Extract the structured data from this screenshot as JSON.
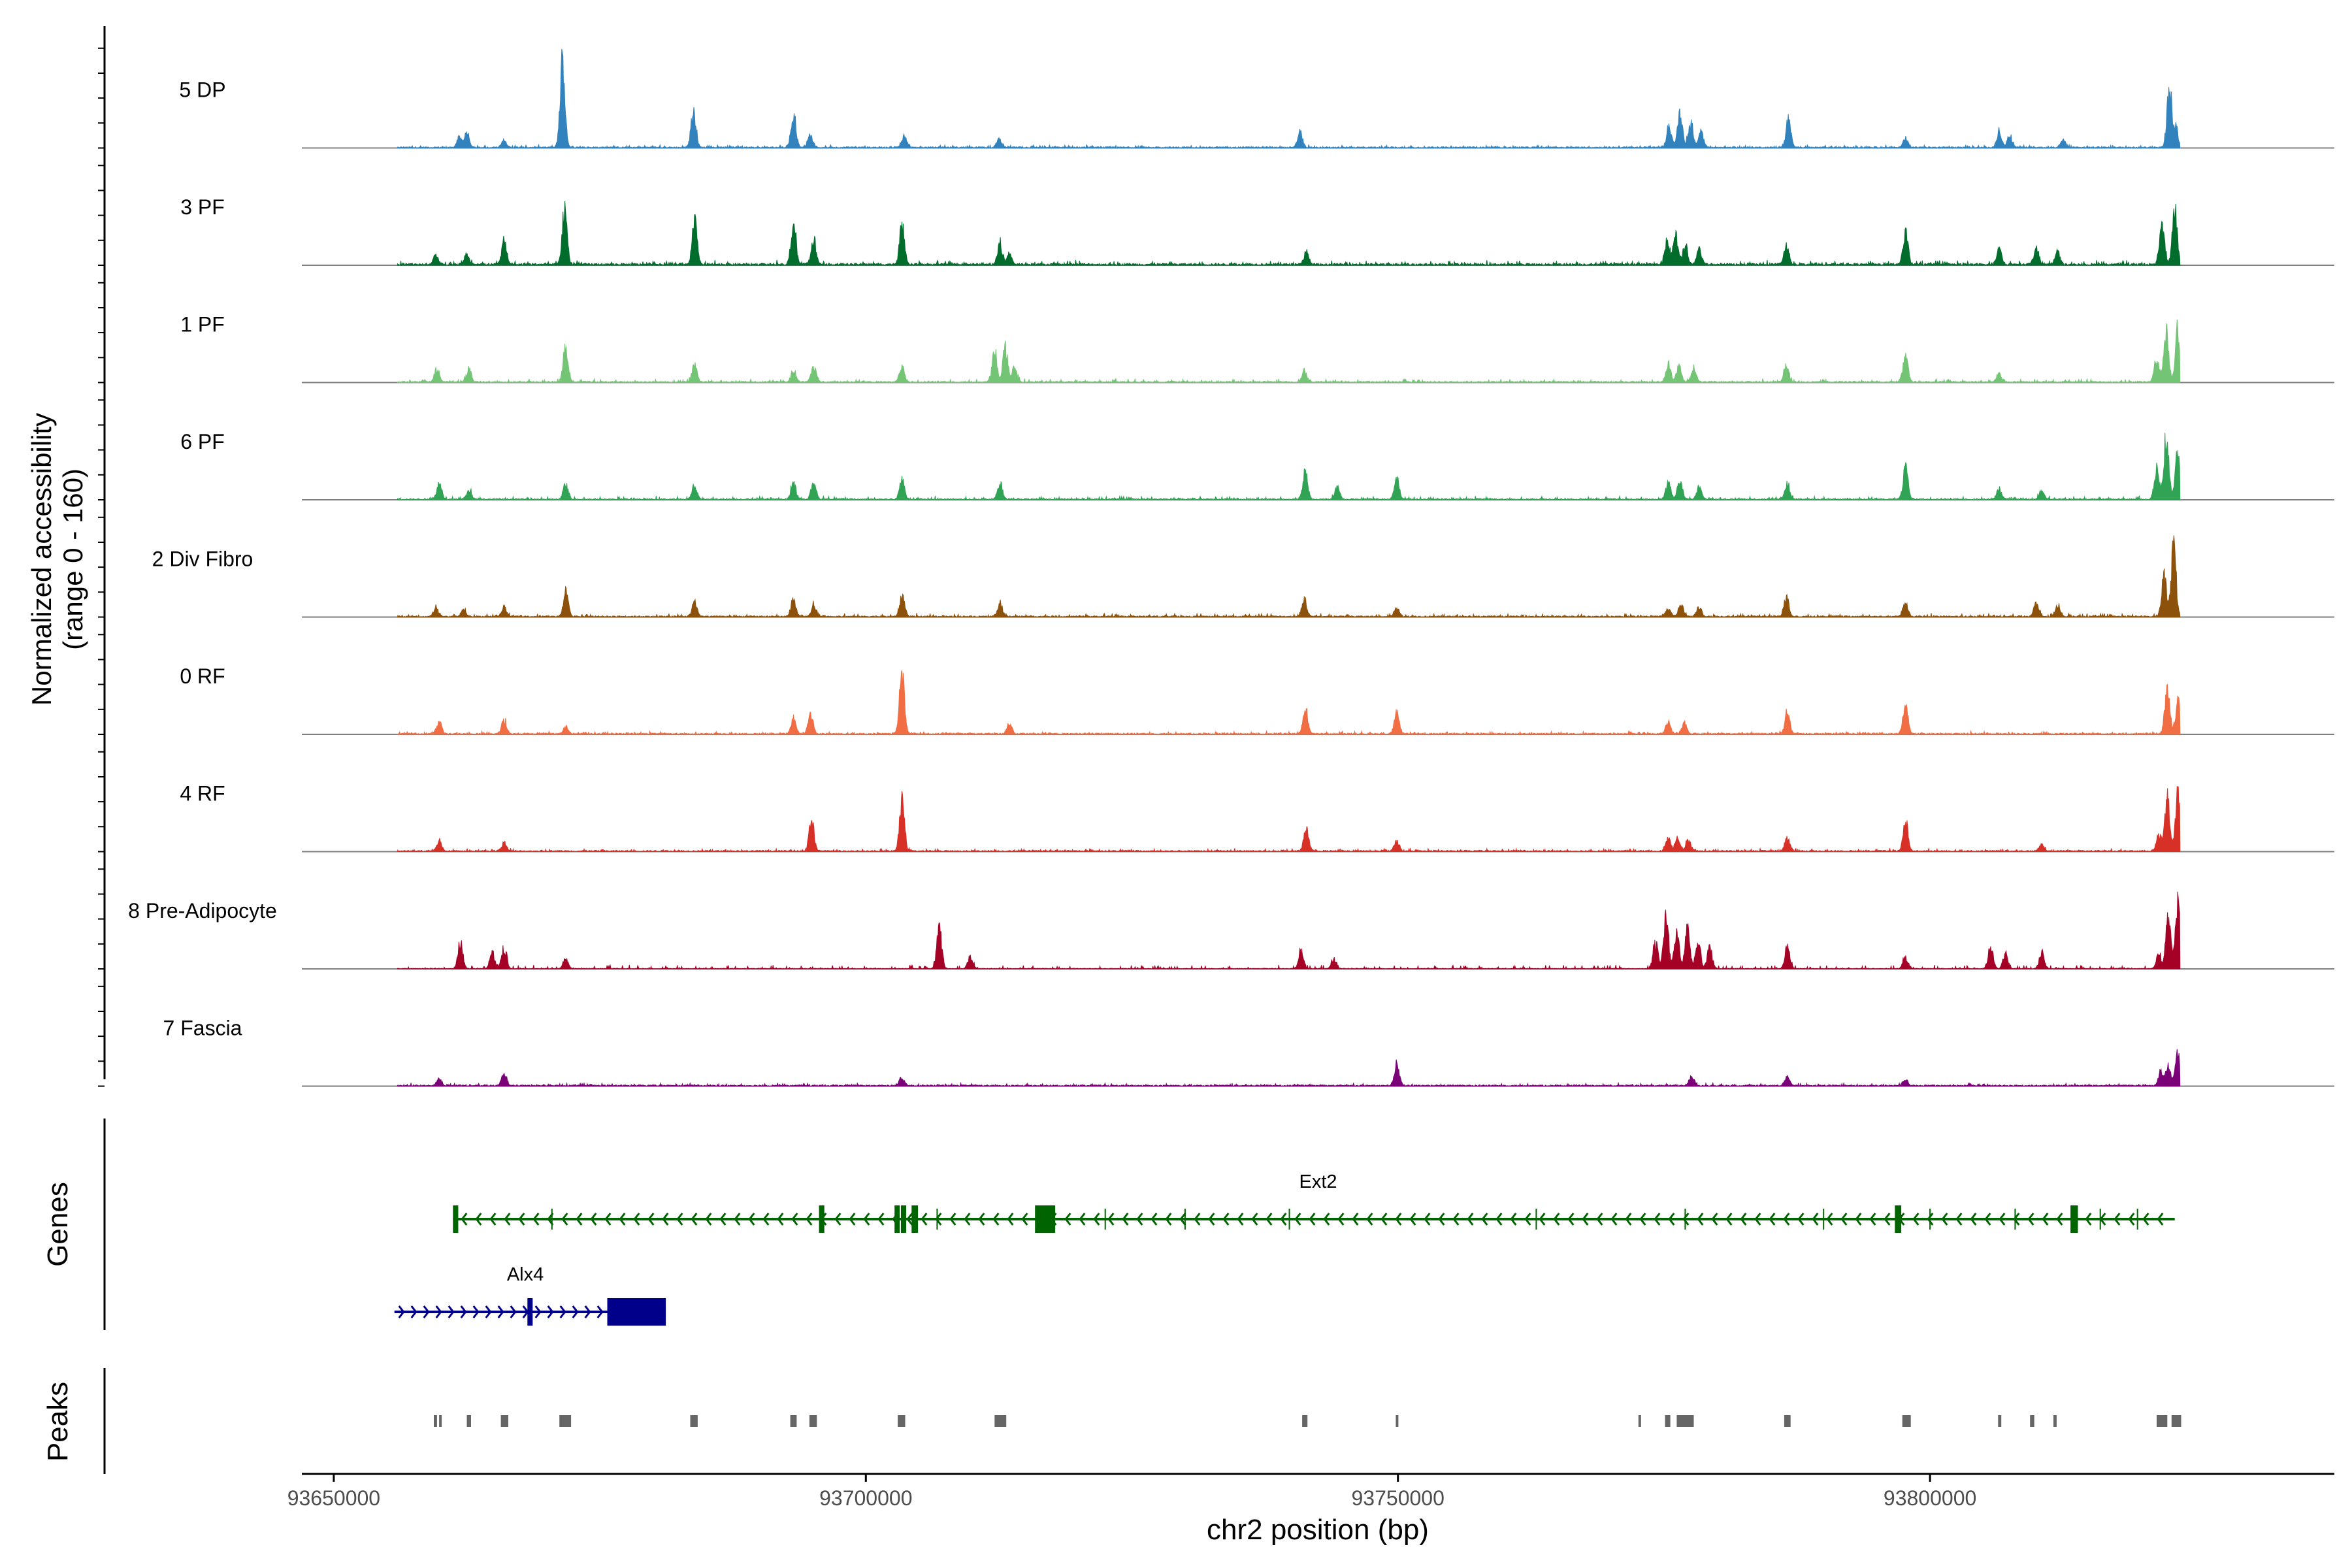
{
  "chart_data": {
    "type": "genome-coverage",
    "title": "",
    "ylabel": "Normalized accessibility (range 0 - 160)",
    "ylabel_lines": [
      "Normalized accessibility",
      "(range 0 - 160)"
    ],
    "ylim": [
      0,
      160
    ],
    "xlabel": "chr2 position (bp)",
    "xlim": [
      93647000,
      93838000
    ],
    "xticks": [
      93650000,
      93700000,
      93750000,
      93800000
    ],
    "xtick_labels": [
      "93650000",
      "93700000",
      "93750000",
      "93800000"
    ],
    "data_start": 93656000,
    "data_end": 93823500,
    "tracks": [
      {
        "name": "5 DP",
        "color": "#3182bd",
        "baseline": 2,
        "noise": 3,
        "peaks": [
          [
            93671500,
            160
          ],
          [
            93683800,
            70
          ],
          [
            93693200,
            65
          ],
          [
            93661800,
            18
          ],
          [
            93662500,
            25
          ],
          [
            93666000,
            12
          ],
          [
            93694800,
            22
          ],
          [
            93703600,
            22
          ],
          [
            93712500,
            15
          ],
          [
            93740800,
            28
          ],
          [
            93775500,
            40
          ],
          [
            93776500,
            60
          ],
          [
            93777500,
            50
          ],
          [
            93778500,
            28
          ],
          [
            93786700,
            50
          ],
          [
            93797700,
            18
          ],
          [
            93806500,
            30
          ],
          [
            93807500,
            22
          ],
          [
            93812500,
            15
          ],
          [
            93822500,
            105
          ],
          [
            93823100,
            35
          ]
        ]
      },
      {
        "name": "3 PF",
        "color": "#006d2c",
        "baseline": 3,
        "noise": 5,
        "peaks": [
          [
            93671700,
            105
          ],
          [
            93683900,
            82
          ],
          [
            93693200,
            80
          ],
          [
            93695100,
            48
          ],
          [
            93703400,
            72
          ],
          [
            93666000,
            42
          ],
          [
            93662500,
            18
          ],
          [
            93659600,
            16
          ],
          [
            93712600,
            38
          ],
          [
            93713500,
            22
          ],
          [
            93741400,
            22
          ],
          [
            93775300,
            42
          ],
          [
            93776100,
            52
          ],
          [
            93777000,
            38
          ],
          [
            93778300,
            28
          ],
          [
            93786500,
            32
          ],
          [
            93797700,
            58
          ],
          [
            93806500,
            28
          ],
          [
            93810000,
            30
          ],
          [
            93812000,
            22
          ],
          [
            93821800,
            68
          ],
          [
            93823000,
            100
          ]
        ]
      },
      {
        "name": "1 PF",
        "color": "#74c476",
        "baseline": 2,
        "noise": 4,
        "peaks": [
          [
            93671800,
            68
          ],
          [
            93683900,
            32
          ],
          [
            93693200,
            22
          ],
          [
            93695100,
            28
          ],
          [
            93703400,
            28
          ],
          [
            93712100,
            55
          ],
          [
            93713100,
            62
          ],
          [
            93714000,
            28
          ],
          [
            93659700,
            25
          ],
          [
            93662700,
            22
          ],
          [
            93741200,
            22
          ],
          [
            93775400,
            32
          ],
          [
            93776400,
            28
          ],
          [
            93777800,
            25
          ],
          [
            93786500,
            30
          ],
          [
            93797700,
            48
          ],
          [
            93806500,
            15
          ],
          [
            93821300,
            45
          ],
          [
            93822200,
            95
          ],
          [
            93823300,
            100
          ]
        ]
      },
      {
        "name": "6 PF",
        "color": "#31a354",
        "baseline": 2,
        "noise": 4,
        "peaks": [
          [
            93659900,
            32
          ],
          [
            93662700,
            18
          ],
          [
            93671800,
            28
          ],
          [
            93683900,
            25
          ],
          [
            93693200,
            30
          ],
          [
            93695100,
            32
          ],
          [
            93703400,
            35
          ],
          [
            93712600,
            28
          ],
          [
            93741300,
            52
          ],
          [
            93744300,
            22
          ],
          [
            93749900,
            38
          ],
          [
            93775400,
            32
          ],
          [
            93776500,
            38
          ],
          [
            93778300,
            22
          ],
          [
            93786600,
            30
          ],
          [
            93797700,
            62
          ],
          [
            93806500,
            18
          ],
          [
            93810500,
            18
          ],
          [
            93821300,
            55
          ],
          [
            93822200,
            115
          ],
          [
            93823300,
            98
          ]
        ]
      },
      {
        "name": "2 Div Fibro",
        "color": "#8c510a",
        "baseline": 2,
        "noise": 4,
        "peaks": [
          [
            93659600,
            16
          ],
          [
            93662200,
            12
          ],
          [
            93666000,
            18
          ],
          [
            93671800,
            45
          ],
          [
            93683900,
            28
          ],
          [
            93693200,
            30
          ],
          [
            93695100,
            22
          ],
          [
            93703400,
            38
          ],
          [
            93712600,
            25
          ],
          [
            93741200,
            32
          ],
          [
            93749900,
            18
          ],
          [
            93775400,
            15
          ],
          [
            93776600,
            22
          ],
          [
            93778300,
            18
          ],
          [
            93786500,
            38
          ],
          [
            93797700,
            28
          ],
          [
            93810000,
            25
          ],
          [
            93812000,
            22
          ],
          [
            93822000,
            75
          ],
          [
            93822900,
            130
          ]
        ]
      },
      {
        "name": "0 RF",
        "color": "#f16d43",
        "baseline": 2,
        "noise": 3,
        "peaks": [
          [
            93659900,
            22
          ],
          [
            93666000,
            25
          ],
          [
            93671800,
            12
          ],
          [
            93693200,
            28
          ],
          [
            93694800,
            38
          ],
          [
            93703400,
            115
          ],
          [
            93713500,
            18
          ],
          [
            93741300,
            48
          ],
          [
            93749900,
            38
          ],
          [
            93775400,
            22
          ],
          [
            93776900,
            20
          ],
          [
            93786600,
            40
          ],
          [
            93797700,
            55
          ],
          [
            93822300,
            80
          ],
          [
            93823300,
            65
          ]
        ]
      },
      {
        "name": "4 RF",
        "color": "#d73027",
        "baseline": 2,
        "noise": 3,
        "peaks": [
          [
            93659900,
            20
          ],
          [
            93666000,
            15
          ],
          [
            93694900,
            58
          ],
          [
            93703400,
            90
          ],
          [
            93741400,
            40
          ],
          [
            93749900,
            18
          ],
          [
            93775400,
            22
          ],
          [
            93776300,
            25
          ],
          [
            93777300,
            22
          ],
          [
            93786600,
            25
          ],
          [
            93797700,
            55
          ],
          [
            93810500,
            12
          ],
          [
            93821500,
            30
          ],
          [
            93822300,
            95
          ],
          [
            93823300,
            105
          ]
        ]
      },
      {
        "name": "8 Pre-Adipocyte",
        "color": "#a50026",
        "baseline": 1,
        "noise": 5,
        "peaks": [
          [
            93661900,
            48
          ],
          [
            93664900,
            30
          ],
          [
            93666000,
            38
          ],
          [
            93671800,
            20
          ],
          [
            93706900,
            75
          ],
          [
            93709800,
            22
          ],
          [
            93740900,
            32
          ],
          [
            93744000,
            18
          ],
          [
            93774200,
            50
          ],
          [
            93775200,
            95
          ],
          [
            93776200,
            68
          ],
          [
            93777200,
            72
          ],
          [
            93778200,
            55
          ],
          [
            93779300,
            40
          ],
          [
            93786600,
            38
          ],
          [
            93797700,
            22
          ],
          [
            93805700,
            40
          ],
          [
            93807100,
            28
          ],
          [
            93810500,
            30
          ],
          [
            93821500,
            25
          ],
          [
            93822400,
            100
          ],
          [
            93823300,
            135
          ]
        ]
      },
      {
        "name": "7 Fascia",
        "color": "#7a0177",
        "baseline": 2,
        "noise": 3,
        "peaks": [
          [
            93659900,
            12
          ],
          [
            93666000,
            22
          ],
          [
            93703400,
            15
          ],
          [
            93749900,
            42
          ],
          [
            93777600,
            18
          ],
          [
            93786600,
            18
          ],
          [
            93797700,
            12
          ],
          [
            93821700,
            25
          ],
          [
            93822400,
            38
          ],
          [
            93823300,
            60
          ]
        ]
      }
    ],
    "genes": [
      {
        "name": "Ext2",
        "strand": "-",
        "start": 93661200,
        "end": 93823000,
        "color": "#006400",
        "exons": [
          [
            93661200,
            93661700,
            "tall"
          ],
          [
            93695600,
            93696100,
            "tall"
          ],
          [
            93702700,
            93703000,
            "tall"
          ],
          [
            93703300,
            93703800,
            "tall"
          ],
          [
            93704300,
            93704900,
            "tall"
          ],
          [
            93715900,
            93717800,
            "cds"
          ],
          [
            93796700,
            93797300,
            "tall"
          ],
          [
            93813200,
            93813900,
            "tall"
          ]
        ]
      },
      {
        "name": "Alx4",
        "strand": "+",
        "start": 93655700,
        "end": 93681200,
        "color": "#00008b",
        "exons": [
          [
            93668200,
            93668600,
            "tall"
          ],
          [
            93675700,
            93681200,
            "cds"
          ]
        ]
      }
    ],
    "peaks_track": {
      "color": "#666666",
      "regions": [
        [
          93659400,
          93659700
        ],
        [
          93659900,
          93660100
        ],
        [
          93662500,
          93662900
        ],
        [
          93665700,
          93666400
        ],
        [
          93671200,
          93672300
        ],
        [
          93683500,
          93684200
        ],
        [
          93692900,
          93693500
        ],
        [
          93694700,
          93695400
        ],
        [
          93703000,
          93703700
        ],
        [
          93712100,
          93713200
        ],
        [
          93741000,
          93741500
        ],
        [
          93749800,
          93750000
        ],
        [
          93772600,
          93772800
        ],
        [
          93775100,
          93775600
        ],
        [
          93776200,
          93777800
        ],
        [
          93786300,
          93786900
        ],
        [
          93797400,
          93798200
        ],
        [
          93806400,
          93806700
        ],
        [
          93809400,
          93809800
        ],
        [
          93811600,
          93811900
        ],
        [
          93821300,
          93822300
        ],
        [
          93822700,
          93823600
        ]
      ]
    },
    "side_labels": {
      "genes": "Genes",
      "peaks": "Peaks"
    }
  }
}
